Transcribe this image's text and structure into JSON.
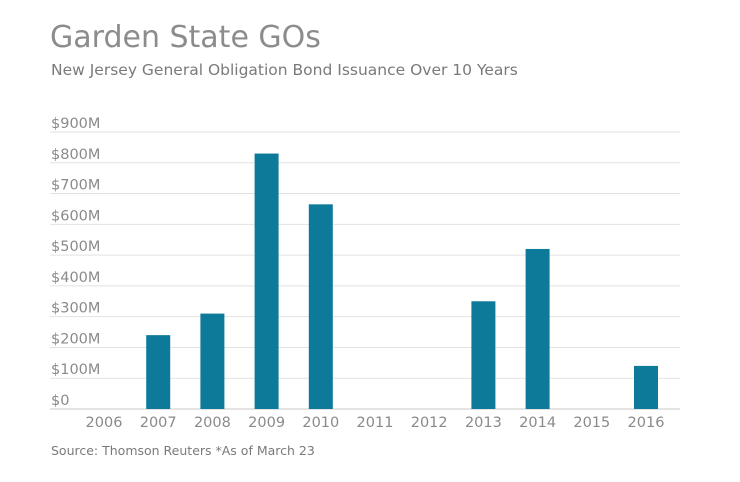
{
  "title": "Garden State GOs",
  "subtitle": "New Jersey General Obligation Bond Issuance Over 10 Years",
  "source": "Source: Thomson Reuters *As of March 23",
  "colors": {
    "bar": "#0e7a99",
    "grid": "#e2e2e2",
    "axis": "#c8c8c8",
    "text": "#8a8a8a"
  },
  "chart_data": {
    "type": "bar",
    "title": "Garden State GOs",
    "subtitle": "New Jersey General Obligation Bond Issuance Over 10 Years",
    "categories": [
      "2006",
      "2007",
      "2008",
      "2009",
      "2010",
      "2011",
      "2012",
      "2013",
      "2014",
      "2015",
      "2016"
    ],
    "values": [
      0,
      240,
      310,
      830,
      665,
      0,
      0,
      350,
      520,
      0,
      140
    ],
    "unit": "$M",
    "ylim": [
      0,
      900
    ],
    "yticks": [
      0,
      100,
      200,
      300,
      400,
      500,
      600,
      700,
      800,
      900
    ],
    "ytick_labels": [
      "$0",
      "$100M",
      "$200M",
      "$300M",
      "$400M",
      "$500M",
      "$600M",
      "$700M",
      "$800M",
      "$900M"
    ],
    "xlabel": "",
    "ylabel": "",
    "grid": true,
    "legend": "none"
  }
}
